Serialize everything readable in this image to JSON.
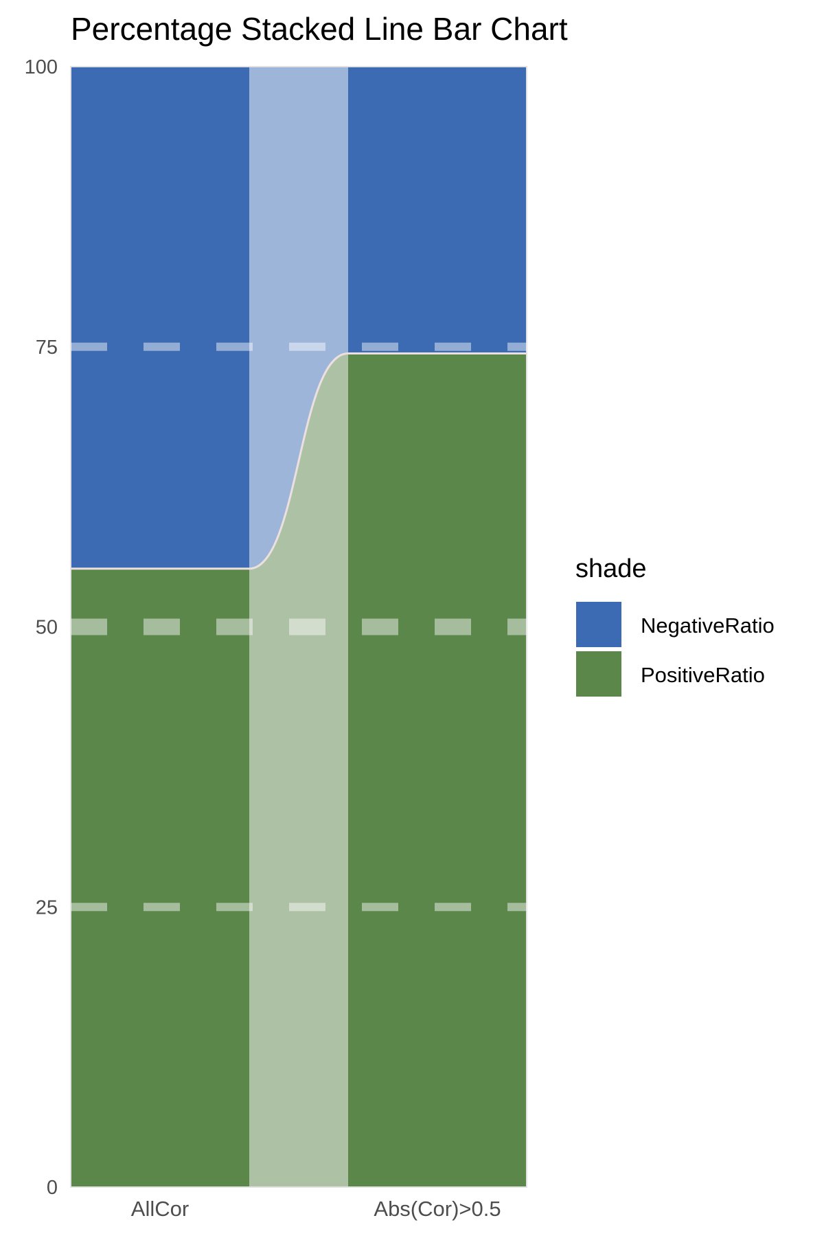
{
  "chart_data": {
    "type": "bar",
    "subtype": "percentage-stacked-with-connecting-area",
    "title": "Percentage Stacked Line Bar Chart",
    "xlabel": "",
    "ylabel": "",
    "ylim": [
      0,
      100
    ],
    "y_ticks": [
      0,
      25,
      50,
      75,
      100
    ],
    "categories": [
      "AllCor",
      "Abs(Cor)>0.5"
    ],
    "series": [
      {
        "name": "PositiveRatio",
        "values": [
          55.2,
          74.4
        ],
        "color": "#5b874b"
      },
      {
        "name": "NegativeRatio",
        "values": [
          44.8,
          25.6
        ],
        "color": "#3d6bb3"
      }
    ],
    "connector_fill": {
      "PositiveRatio": "#adc2a5",
      "NegativeRatio": "#9eb5da"
    },
    "boundary_line_color": "#ecdfe0",
    "gridlines": "dashed horizontal at 25, 50, 75",
    "legend": {
      "title": "shade",
      "position": "right",
      "items": [
        {
          "label": "NegativeRatio",
          "color": "#3d6bb3"
        },
        {
          "label": "PositiveRatio",
          "color": "#5b874b"
        }
      ]
    }
  }
}
